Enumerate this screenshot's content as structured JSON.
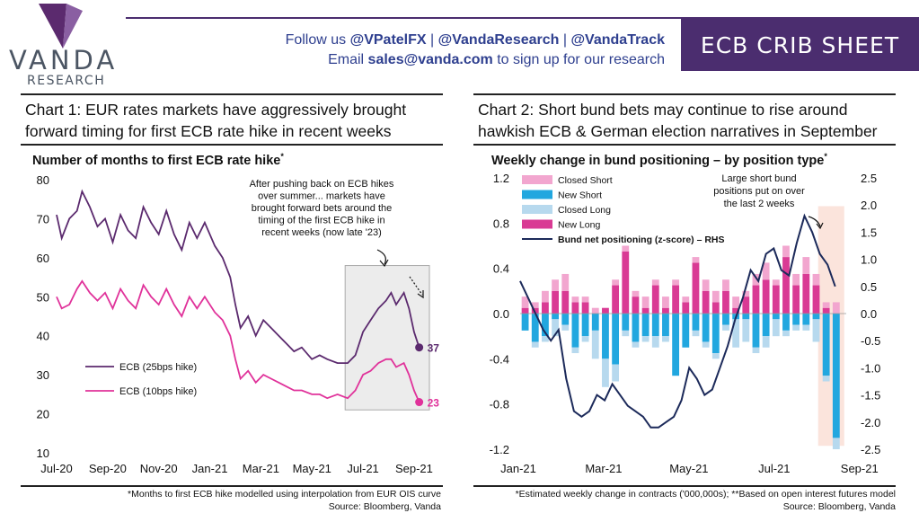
{
  "header": {
    "brand": {
      "name": "VANDA",
      "sub": "RESEARCH"
    },
    "follow_prefix": "Follow us ",
    "handles": [
      "@VPatelFX",
      "@VandaResearch",
      "@VandaTrack"
    ],
    "separator": " | ",
    "email_prefix": "Email ",
    "email": "sales@vanda.com",
    "email_suffix": " to sign up for our research",
    "sheet_title": "ECB CRIB SHEET",
    "accent_color": "#4b2d6f"
  },
  "chart_data": [
    {
      "type": "line",
      "heading": "Chart 1: EUR rates markets have aggressively brought forward timing for first ECB rate hike in recent weeks",
      "title": "Number of months to first ECB rate hike",
      "title_mark": "*",
      "ylim": [
        10,
        80
      ],
      "yticks": [
        "10",
        "20",
        "30",
        "40",
        "50",
        "60",
        "70",
        "80"
      ],
      "xticks": [
        "Jul-20",
        "Sep-20",
        "Nov-20",
        "Jan-21",
        "Mar-21",
        "May-21",
        "Jul-21",
        "Sep-21"
      ],
      "x_range_months": [
        0,
        14.6
      ],
      "annotation": "After pushing back on ECB hikes over summer... markets have brought forward bets around the timing of the first ECB hike in recent weeks (now late '23)",
      "series": [
        {
          "name": "ECB (25bps hike)",
          "color": "#5b2a6e",
          "end_label": "37",
          "points": [
            [
              0,
              71
            ],
            [
              0.2,
              65
            ],
            [
              0.5,
              70
            ],
            [
              0.8,
              72
            ],
            [
              1.0,
              77
            ],
            [
              1.3,
              73
            ],
            [
              1.6,
              68
            ],
            [
              1.9,
              70
            ],
            [
              2.2,
              64
            ],
            [
              2.5,
              71
            ],
            [
              2.8,
              67
            ],
            [
              3.1,
              65
            ],
            [
              3.4,
              73
            ],
            [
              3.7,
              69
            ],
            [
              4.0,
              66
            ],
            [
              4.3,
              72
            ],
            [
              4.6,
              66
            ],
            [
              4.9,
              62
            ],
            [
              5.2,
              69
            ],
            [
              5.5,
              65
            ],
            [
              5.8,
              69
            ],
            [
              6.2,
              63
            ],
            [
              6.5,
              60
            ],
            [
              6.8,
              55
            ],
            [
              7.0,
              48
            ],
            [
              7.2,
              42
            ],
            [
              7.5,
              45
            ],
            [
              7.8,
              40
            ],
            [
              8.1,
              44
            ],
            [
              8.4,
              42
            ],
            [
              8.7,
              40
            ],
            [
              9.0,
              38
            ],
            [
              9.3,
              36
            ],
            [
              9.6,
              37
            ],
            [
              10.0,
              34
            ],
            [
              10.3,
              35
            ],
            [
              10.6,
              34
            ],
            [
              11.0,
              33
            ],
            [
              11.4,
              33
            ],
            [
              11.7,
              35
            ],
            [
              12.0,
              41
            ],
            [
              12.3,
              44
            ],
            [
              12.6,
              47
            ],
            [
              12.9,
              49
            ],
            [
              13.1,
              51
            ],
            [
              13.3,
              48
            ],
            [
              13.6,
              51
            ],
            [
              13.8,
              47
            ],
            [
              14.0,
              41
            ],
            [
              14.2,
              37
            ]
          ]
        },
        {
          "name": "ECB (10bps hike)",
          "color": "#e0329a",
          "end_label": "23",
          "points": [
            [
              0,
              50
            ],
            [
              0.2,
              47
            ],
            [
              0.5,
              48
            ],
            [
              0.8,
              52
            ],
            [
              1.0,
              54
            ],
            [
              1.3,
              51
            ],
            [
              1.6,
              49
            ],
            [
              1.9,
              51
            ],
            [
              2.2,
              47
            ],
            [
              2.5,
              52
            ],
            [
              2.8,
              49
            ],
            [
              3.1,
              47
            ],
            [
              3.4,
              53
            ],
            [
              3.7,
              50
            ],
            [
              4.0,
              48
            ],
            [
              4.3,
              52
            ],
            [
              4.6,
              48
            ],
            [
              4.9,
              45
            ],
            [
              5.2,
              50
            ],
            [
              5.5,
              47
            ],
            [
              5.8,
              50
            ],
            [
              6.2,
              46
            ],
            [
              6.5,
              44
            ],
            [
              6.8,
              40
            ],
            [
              7.0,
              34
            ],
            [
              7.2,
              29
            ],
            [
              7.5,
              31
            ],
            [
              7.8,
              28
            ],
            [
              8.1,
              30
            ],
            [
              8.4,
              29
            ],
            [
              8.7,
              28
            ],
            [
              9.0,
              27
            ],
            [
              9.3,
              26
            ],
            [
              9.6,
              26
            ],
            [
              10.0,
              25
            ],
            [
              10.3,
              25
            ],
            [
              10.6,
              24
            ],
            [
              11.0,
              25
            ],
            [
              11.4,
              24
            ],
            [
              11.7,
              26
            ],
            [
              12.0,
              30
            ],
            [
              12.3,
              31
            ],
            [
              12.6,
              33
            ],
            [
              12.9,
              34
            ],
            [
              13.1,
              34
            ],
            [
              13.3,
              32
            ],
            [
              13.6,
              33
            ],
            [
              13.8,
              30
            ],
            [
              14.0,
              26
            ],
            [
              14.2,
              23
            ]
          ]
        }
      ],
      "footnote": "*Months to first ECB hike modelled using interpolation from EUR OIS curve",
      "source": "Source: Bloomberg, Vanda"
    },
    {
      "type": "bar",
      "heading": "Chart 2: Short bund bets may continue to rise around hawkish ECB & German election narratives in September",
      "title": "Weekly change in bund positioning – by position type",
      "title_mark": "*",
      "ylim": [
        -1.2,
        1.2
      ],
      "yticks": [
        "-1.2",
        "-0.8",
        "-0.4",
        "0.0",
        "0.4",
        "0.8",
        "1.2"
      ],
      "y2lim": [
        -2.5,
        2.5
      ],
      "y2ticks": [
        "-2.5",
        "-2.0",
        "-1.5",
        "-1.0",
        "-0.5",
        "0.0",
        "0.5",
        "1.0",
        "1.5",
        "2.0",
        "2.5"
      ],
      "xticks": [
        "Jan-21",
        "Mar-21",
        "May-21",
        "Jul-21",
        "Sep-21"
      ],
      "annotation": "Large short bund positions put on over the last 2 weeks",
      "legend": [
        {
          "name": "Closed Short",
          "color": "#f2a6cf"
        },
        {
          "name": "New Short",
          "color": "#22a7df"
        },
        {
          "name": "Closed Long",
          "color": "#b7d9ee"
        },
        {
          "name": "New Long",
          "color": "#d93a94"
        },
        {
          "name": "Bund net positioning (z-score) – RHS",
          "color": "#1c2a5a",
          "kind": "line"
        }
      ],
      "weeks": [
        {
          "cs": 0.1,
          "ns": -0.15,
          "cl": 0,
          "nl": 0.05
        },
        {
          "cs": 0.05,
          "ns": -0.25,
          "cl": -0.05,
          "nl": 0.05
        },
        {
          "cs": 0.1,
          "ns": -0.2,
          "cl": -0.05,
          "nl": 0.1
        },
        {
          "cs": 0.1,
          "ns": -0.05,
          "cl": -0.15,
          "nl": 0.2
        },
        {
          "cs": 0.15,
          "ns": -0.1,
          "cl": -0.05,
          "nl": 0.2
        },
        {
          "cs": 0.05,
          "ns": -0.3,
          "cl": -0.05,
          "nl": 0.1
        },
        {
          "cs": 0.05,
          "ns": -0.2,
          "cl": -0.05,
          "nl": 0.1
        },
        {
          "cs": 0.05,
          "ns": -0.15,
          "cl": -0.25,
          "nl": 0
        },
        {
          "cs": 0,
          "ns": -0.4,
          "cl": -0.25,
          "nl": 0.05
        },
        {
          "cs": 0.05,
          "ns": -0.45,
          "cl": -0.15,
          "nl": 0.25
        },
        {
          "cs": 0.05,
          "ns": -0.15,
          "cl": -0.05,
          "nl": 0.55
        },
        {
          "cs": 0.05,
          "ns": -0.25,
          "cl": -0.05,
          "nl": 0.15
        },
        {
          "cs": 0.1,
          "ns": -0.2,
          "cl": -0.05,
          "nl": 0.05
        },
        {
          "cs": 0.05,
          "ns": -0.2,
          "cl": -0.1,
          "nl": 0.25
        },
        {
          "cs": 0.1,
          "ns": -0.2,
          "cl": -0.05,
          "nl": 0.05
        },
        {
          "cs": 0.05,
          "ns": -0.55,
          "cl": 0,
          "nl": 0.25
        },
        {
          "cs": 0.05,
          "ns": -0.3,
          "cl": 0,
          "nl": 0.1
        },
        {
          "cs": 0.05,
          "ns": -0.15,
          "cl": -0.05,
          "nl": 0.45
        },
        {
          "cs": 0.1,
          "ns": -0.25,
          "cl": -0.05,
          "nl": 0.2
        },
        {
          "cs": 0.1,
          "ns": -0.35,
          "cl": -0.05,
          "nl": 0.1
        },
        {
          "cs": 0.1,
          "ns": -0.1,
          "cl": -0.05,
          "nl": 0.2
        },
        {
          "cs": 0.1,
          "ns": -0.05,
          "cl": -0.25,
          "nl": 0.05
        },
        {
          "cs": 0.05,
          "ns": -0.05,
          "cl": -0.2,
          "nl": 0.15
        },
        {
          "cs": 0.1,
          "ns": -0.3,
          "cl": -0.05,
          "nl": 0.25
        },
        {
          "cs": 0.15,
          "ns": -0.2,
          "cl": -0.1,
          "nl": 0.3
        },
        {
          "cs": 0.05,
          "ns": -0.05,
          "cl": -0.15,
          "nl": 0.25
        },
        {
          "cs": 0.1,
          "ns": -0.15,
          "cl": -0.05,
          "nl": 0.5
        },
        {
          "cs": 0.1,
          "ns": -0.1,
          "cl": -0.05,
          "nl": 0.25
        },
        {
          "cs": 0.15,
          "ns": -0.1,
          "cl": -0.05,
          "nl": 0.35
        },
        {
          "cs": 0.1,
          "ns": -0.05,
          "cl": -0.2,
          "nl": 0.25
        },
        {
          "cs": 0.05,
          "ns": -0.55,
          "cl": -0.05,
          "nl": 0.05
        },
        {
          "cs": 0.1,
          "ns": -1.1,
          "cl": -0.1,
          "nl": 0
        }
      ],
      "line_rhs": [
        0.6,
        0.3,
        0.0,
        -0.3,
        -0.5,
        -0.3,
        -1.2,
        -1.8,
        -1.9,
        -1.8,
        -1.5,
        -1.6,
        -1.3,
        -1.5,
        -1.7,
        -1.8,
        -1.9,
        -2.1,
        -2.1,
        -2.0,
        -1.9,
        -1.6,
        -1.0,
        -1.2,
        -1.5,
        -1.4,
        -1.0,
        -0.6,
        -0.1,
        0.3,
        0.8,
        0.6,
        1.1,
        1.2,
        0.8,
        0.7,
        1.3,
        1.8,
        1.5,
        1.1,
        0.9,
        0.5
      ],
      "footnote": "*Estimated weekly change in contracts ('000,000s); **Based on open interest futures model",
      "source": "Source: Bloomberg, Vanda"
    }
  ]
}
